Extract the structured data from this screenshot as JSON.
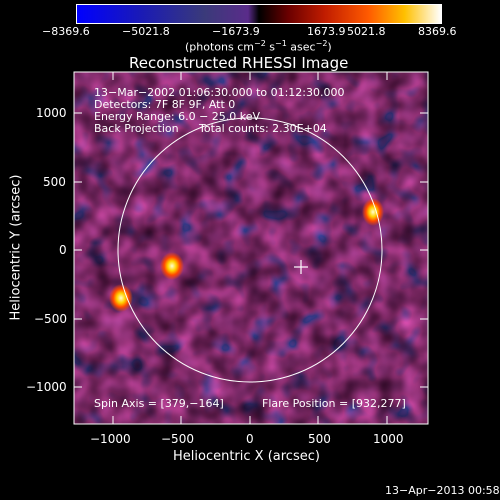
{
  "colorbar": {
    "ticks": [
      "−8369.6",
      "−5021.8",
      "−1673.9",
      "1673.9",
      "5021.8",
      "8369.6"
    ]
  },
  "plot": {
    "title": "Reconstructed RHESSI Image"
  },
  "info": {
    "time_range": "13−Mar−2002 01:06:30.000 to 01:12:30.000",
    "detectors": "Detectors: 7F 8F 9F, Att 0",
    "energy_range": "Energy Range: 6.0 − 25.0 keV",
    "method": "Back Projection",
    "total_counts": "Total counts: 2.30E+04",
    "spin_axis": "Spin Axis = [379,−164]",
    "flare_position": "Flare Position = [932,277]"
  },
  "axes": {
    "xlabel": "Heliocentric X (arcsec)",
    "ylabel": "Heliocentric Y (arcsec)",
    "x_ticks": [
      "−1000",
      "−500",
      "0",
      "500",
      "1000"
    ],
    "y_ticks": [
      "1000",
      "500",
      "0",
      "−500",
      "−1000"
    ]
  },
  "footer": {
    "date": "13−Apr−2013 00:58"
  }
}
